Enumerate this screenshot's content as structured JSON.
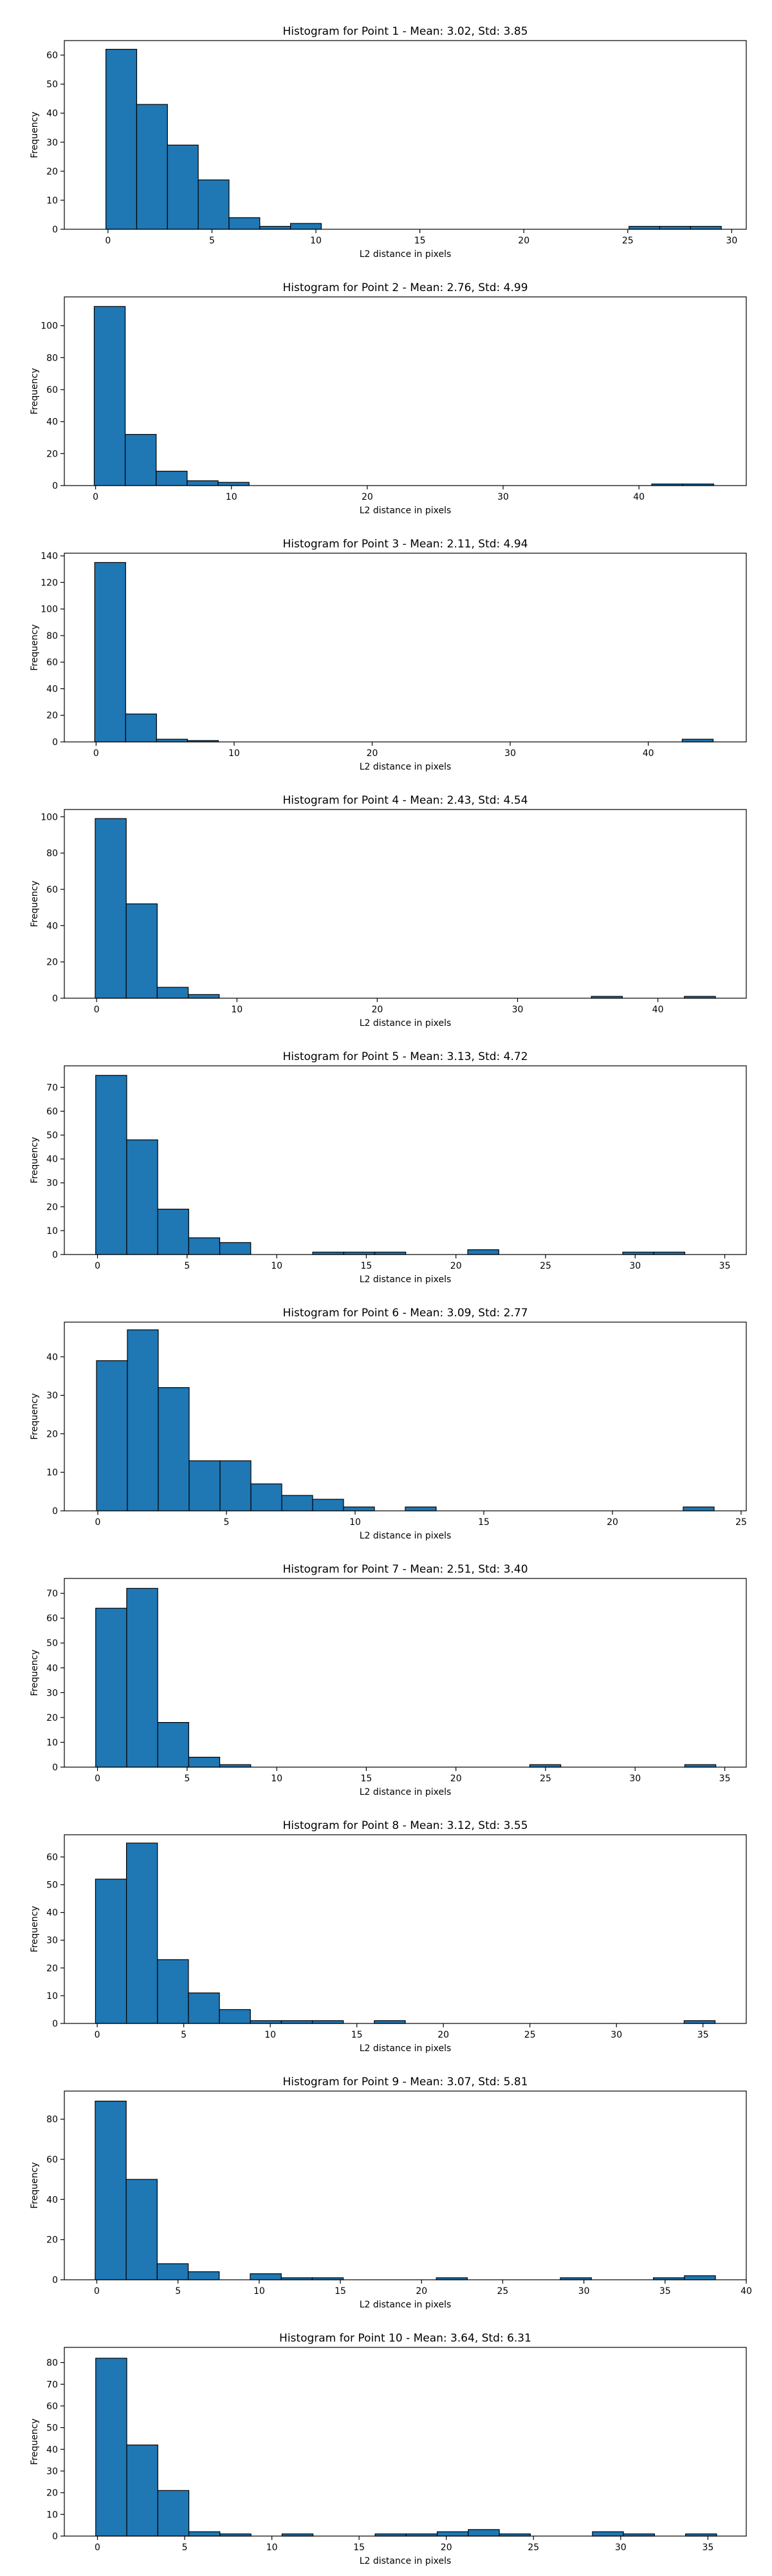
{
  "chart_data": [
    {
      "type": "bar",
      "title": "Histogram for Point 1 - Mean: 3.02, Std: 3.85",
      "xlabel": "L2 distance in pixels",
      "ylabel": "Frequency",
      "xlim": [
        -2.1,
        30.7
      ],
      "ylim": [
        0,
        65
      ],
      "xticks": [
        0,
        5,
        10,
        15,
        20,
        25,
        30
      ],
      "yticks": [
        0,
        10,
        20,
        30,
        40,
        50,
        60
      ],
      "bin_start": -0.1,
      "bin_width": 1.48,
      "values": [
        62,
        43,
        29,
        17,
        4,
        1,
        2,
        0,
        0,
        0,
        0,
        0,
        0,
        0,
        0,
        0,
        0,
        1,
        1,
        1
      ]
    },
    {
      "type": "bar",
      "title": "Histogram for Point 2 - Mean: 2.76, Std: 4.99",
      "xlabel": "L2 distance in pixels",
      "ylabel": "Frequency",
      "xlim": [
        -2.3,
        47.9
      ],
      "ylim": [
        0,
        118
      ],
      "xticks": [
        0,
        10,
        20,
        30,
        40
      ],
      "yticks": [
        0,
        20,
        40,
        60,
        80,
        100
      ],
      "bin_start": -0.1,
      "bin_width": 2.28,
      "values": [
        112,
        32,
        9,
        3,
        2,
        0,
        0,
        0,
        0,
        0,
        0,
        0,
        0,
        0,
        0,
        0,
        0,
        0,
        1,
        1
      ]
    },
    {
      "type": "bar",
      "title": "Histogram for Point 3 - Mean: 2.11, Std: 4.94",
      "xlabel": "L2 distance in pixels",
      "ylabel": "Frequency",
      "xlim": [
        -2.3,
        47.1
      ],
      "ylim": [
        0,
        142
      ],
      "xticks": [
        0,
        10,
        20,
        30,
        40
      ],
      "yticks": [
        0,
        20,
        40,
        60,
        80,
        100,
        120,
        140
      ],
      "bin_start": -0.1,
      "bin_width": 2.24,
      "values": [
        135,
        21,
        2,
        1,
        0,
        0,
        0,
        0,
        0,
        0,
        0,
        0,
        0,
        0,
        0,
        0,
        0,
        0,
        0,
        2
      ]
    },
    {
      "type": "bar",
      "title": "Histogram for Point 4 - Mean: 2.43, Std: 4.54",
      "xlabel": "L2 distance in pixels",
      "ylabel": "Frequency",
      "xlim": [
        -2.3,
        46.3
      ],
      "ylim": [
        0,
        104
      ],
      "xticks": [
        0,
        10,
        20,
        30,
        40
      ],
      "yticks": [
        0,
        20,
        40,
        60,
        80,
        100
      ],
      "bin_start": -0.1,
      "bin_width": 2.21,
      "values": [
        99,
        52,
        6,
        2,
        0,
        0,
        0,
        0,
        0,
        0,
        0,
        0,
        0,
        0,
        0,
        0,
        1,
        0,
        0,
        1
      ]
    },
    {
      "type": "bar",
      "title": "Histogram for Point 5 - Mean: 3.13, Std: 4.72",
      "xlabel": "L2 distance in pixels",
      "ylabel": "Frequency",
      "xlim": [
        -1.85,
        36.2
      ],
      "ylim": [
        0,
        79
      ],
      "xticks": [
        0,
        5,
        10,
        15,
        20,
        25,
        30,
        35
      ],
      "yticks": [
        0,
        10,
        20,
        30,
        40,
        50,
        60,
        70
      ],
      "bin_start": -0.1,
      "bin_width": 1.73,
      "values": [
        75,
        48,
        19,
        7,
        5,
        0,
        0,
        1,
        1,
        1,
        0,
        0,
        2,
        0,
        0,
        0,
        0,
        1,
        1,
        0
      ]
    },
    {
      "type": "bar",
      "title": "Histogram for Point 6 - Mean: 3.09, Std: 2.77",
      "xlabel": "L2 distance in pixels",
      "ylabel": "Frequency",
      "xlim": [
        -1.3,
        25.2
      ],
      "ylim": [
        0,
        49
      ],
      "xticks": [
        0,
        5,
        10,
        15,
        20,
        25
      ],
      "yticks": [
        0,
        10,
        20,
        30,
        40
      ],
      "bin_start": -0.05,
      "bin_width": 1.2,
      "values": [
        39,
        47,
        32,
        13,
        13,
        7,
        4,
        3,
        1,
        0,
        1,
        0,
        0,
        0,
        0,
        0,
        0,
        0,
        0,
        1
      ]
    },
    {
      "type": "bar",
      "title": "Histogram for Point 7 - Mean: 2.51, Std: 3.40",
      "xlabel": "L2 distance in pixels",
      "ylabel": "Frequency",
      "xlim": [
        -1.85,
        36.2
      ],
      "ylim": [
        0,
        76
      ],
      "xticks": [
        0,
        5,
        10,
        15,
        20,
        25,
        30,
        35
      ],
      "yticks": [
        0,
        10,
        20,
        30,
        40,
        50,
        60,
        70
      ],
      "bin_start": -0.1,
      "bin_width": 1.73,
      "values": [
        64,
        72,
        18,
        4,
        1,
        0,
        0,
        0,
        0,
        0,
        0,
        0,
        0,
        0,
        1,
        0,
        0,
        0,
        0,
        1
      ]
    },
    {
      "type": "bar",
      "title": "Histogram for Point 8 - Mean: 3.12, Std: 3.55",
      "xlabel": "L2 distance in pixels",
      "ylabel": "Frequency",
      "xlim": [
        -1.9,
        37.5
      ],
      "ylim": [
        0,
        68
      ],
      "xticks": [
        0,
        5,
        10,
        15,
        20,
        25,
        30,
        35
      ],
      "yticks": [
        0,
        10,
        20,
        30,
        40,
        50,
        60
      ],
      "bin_start": -0.1,
      "bin_width": 1.79,
      "values": [
        52,
        65,
        23,
        11,
        5,
        1,
        1,
        1,
        0,
        1,
        0,
        0,
        0,
        0,
        0,
        0,
        0,
        0,
        0,
        1
      ]
    },
    {
      "type": "bar",
      "title": "Histogram for Point 9 - Mean: 3.07, Std: 5.81",
      "xlabel": "L2 distance in pixels",
      "ylabel": "Frequency",
      "xlim": [
        -2.0,
        40.0
      ],
      "ylim": [
        0,
        94
      ],
      "xticks": [
        0,
        5,
        10,
        15,
        20,
        25,
        30,
        35,
        40
      ],
      "yticks": [
        0,
        20,
        40,
        60,
        80
      ],
      "bin_start": -0.1,
      "bin_width": 1.91,
      "values": [
        89,
        50,
        8,
        4,
        0,
        3,
        1,
        1,
        0,
        0,
        0,
        1,
        0,
        0,
        0,
        1,
        0,
        0,
        1,
        2
      ]
    },
    {
      "type": "bar",
      "title": "Histogram for Point 10 - Mean: 3.64, Std: 6.31",
      "xlabel": "L2 distance in pixels",
      "ylabel": "Frequency",
      "xlim": [
        -1.9,
        37.2
      ],
      "ylim": [
        0,
        87
      ],
      "xticks": [
        0,
        5,
        10,
        15,
        20,
        25,
        30,
        35
      ],
      "yticks": [
        0,
        10,
        20,
        30,
        40,
        50,
        60,
        70,
        80
      ],
      "bin_start": -0.1,
      "bin_width": 1.78,
      "values": [
        82,
        42,
        21,
        2,
        1,
        0,
        1,
        0,
        0,
        1,
        1,
        2,
        3,
        1,
        0,
        0,
        2,
        1,
        0,
        1
      ]
    }
  ],
  "style": {
    "bar_fill": "#1f77b4",
    "bar_edge": "#000000",
    "axis_color": "#000000"
  }
}
